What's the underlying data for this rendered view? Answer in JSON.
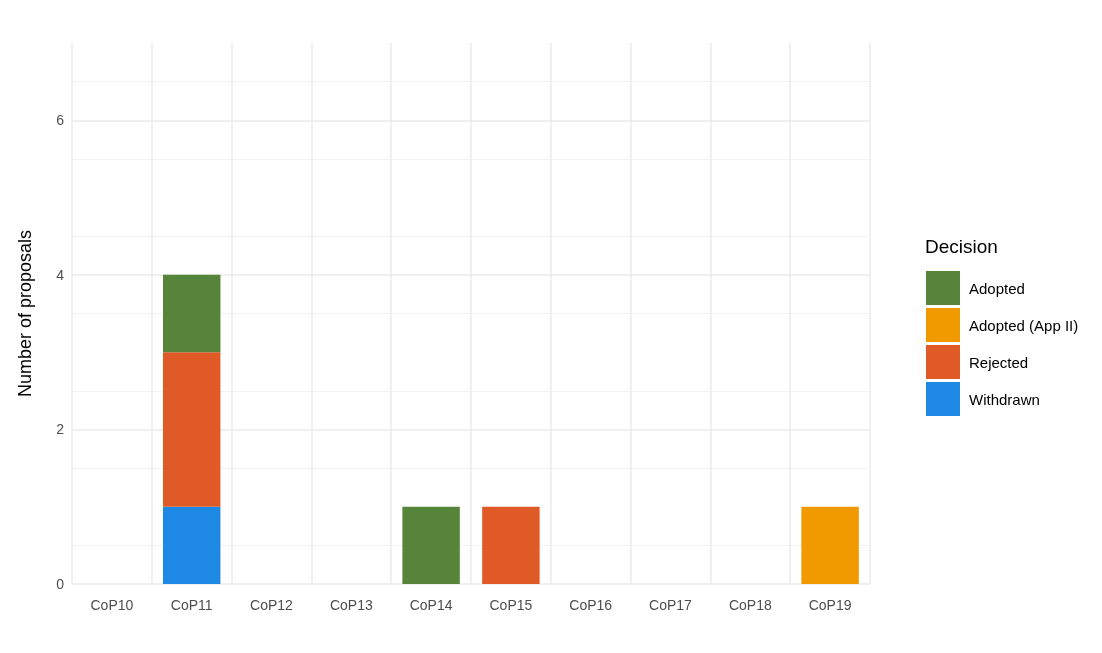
{
  "chart_data": {
    "type": "bar",
    "stacked": true,
    "ylabel": "Number of proposals",
    "legend_title": "Decision",
    "legend": "right",
    "categories": [
      "CoP10",
      "CoP11",
      "CoP12",
      "CoP13",
      "CoP14",
      "CoP15",
      "CoP16",
      "CoP17",
      "CoP18",
      "CoP19"
    ],
    "series": [
      {
        "name": "Withdrawn",
        "color": "#1e88e5",
        "values": [
          null,
          1,
          null,
          null,
          null,
          null,
          null,
          null,
          null,
          null
        ]
      },
      {
        "name": "Rejected",
        "color": "#e05a28",
        "values": [
          null,
          2,
          null,
          null,
          null,
          1,
          null,
          null,
          null,
          null
        ]
      },
      {
        "name": "Adopted (App II)",
        "color": "#f09a00",
        "values": [
          null,
          null,
          null,
          null,
          null,
          null,
          null,
          null,
          null,
          1
        ]
      },
      {
        "name": "Adopted",
        "color": "#56843b",
        "values": [
          null,
          1,
          null,
          null,
          1,
          null,
          null,
          null,
          null,
          null
        ]
      }
    ],
    "ylim": [
      0,
      7
    ],
    "yticks": [
      0,
      2,
      4,
      6
    ],
    "grid": true
  }
}
